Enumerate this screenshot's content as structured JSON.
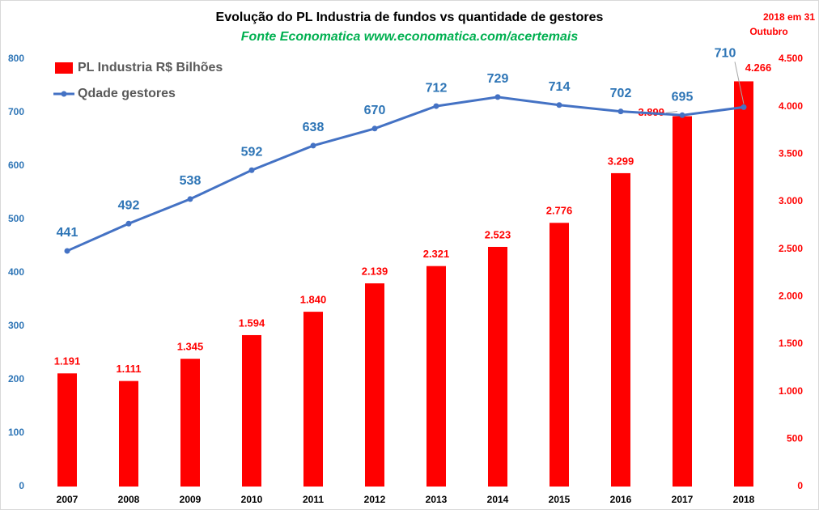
{
  "chart_data": {
    "type": "bar_line",
    "title": "Evolução do PL Industria de fundos vs quantidade de gestores",
    "subtitle": "Fonte Economatica www.economatica.com/acertemais",
    "annotation": [
      "2018  em 31",
      "Outubro"
    ],
    "categories": [
      "2007",
      "2008",
      "2009",
      "2010",
      "2011",
      "2012",
      "2013",
      "2014",
      "2015",
      "2016",
      "2017",
      "2018"
    ],
    "series": [
      {
        "name": "PL Industria R$ Bilhões",
        "type": "bar",
        "axis": "y2",
        "color": "#ff0000",
        "values": [
          1191,
          1111,
          1345,
          1594,
          1840,
          2139,
          2321,
          2523,
          2776,
          3299,
          3899,
          4266
        ],
        "value_labels": [
          "1.191",
          "1.111",
          "1.345",
          "1.594",
          "1.840",
          "2.139",
          "2.321",
          "2.523",
          "2.776",
          "3.299",
          "3.899",
          "4.266"
        ]
      },
      {
        "name": "Qdade gestores",
        "type": "line",
        "axis": "y",
        "color": "#4472c4",
        "values": [
          441,
          492,
          538,
          592,
          638,
          670,
          712,
          729,
          714,
          702,
          695,
          710
        ]
      }
    ],
    "ylim": [
      0,
      800
    ],
    "yticks": [
      0,
      100,
      200,
      300,
      400,
      500,
      600,
      700,
      800
    ],
    "y2lim": [
      0,
      4500
    ],
    "y2ticks": [
      0,
      500,
      {
        "value": 1000,
        "label": "1.000"
      },
      {
        "value": 1500,
        "label": "1.500"
      },
      {
        "value": 2000,
        "label": "2.000"
      },
      {
        "value": 2500,
        "label": "2.500"
      },
      {
        "value": 3000,
        "label": "3.000"
      },
      {
        "value": 3500,
        "label": "3.500"
      },
      {
        "value": 4000,
        "label": "4.000"
      },
      {
        "value": 4500,
        "label": "4.500"
      }
    ],
    "grid": false
  }
}
